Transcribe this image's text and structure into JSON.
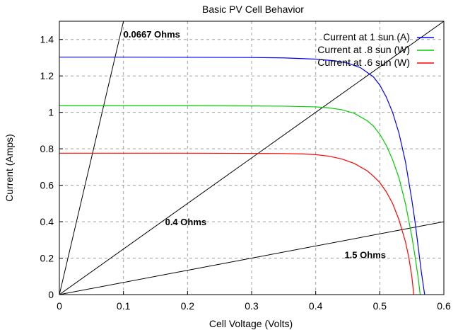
{
  "chart_data": {
    "type": "line",
    "title": "Basic PV Cell Behavior",
    "xlabel": "Cell Voltage (Volts)",
    "ylabel": "Current (Amps)",
    "xlim": [
      0,
      0.6
    ],
    "ylim": [
      0,
      1.5
    ],
    "xticks": [
      0,
      0.1,
      0.2,
      0.3,
      0.4,
      0.5,
      0.6
    ],
    "xtick_labels": [
      "0",
      "0.1",
      "0.2",
      "0.3",
      "0.4",
      "0.5",
      "0.6"
    ],
    "yticks": [
      0,
      0.2,
      0.4,
      0.6,
      0.8,
      1,
      1.2,
      1.4
    ],
    "ytick_labels": [
      "0",
      "0.2",
      "0.4",
      "0.6",
      "0.8",
      "1",
      "1.2",
      "1.4"
    ],
    "grid": true,
    "legend_position": "top-right",
    "series": [
      {
        "name": "Current at 1 sun (A)",
        "color": "#0000ff",
        "x": [
          0,
          0.1,
          0.2,
          0.3,
          0.35,
          0.4,
          0.43,
          0.45,
          0.47,
          0.49,
          0.5,
          0.51,
          0.52,
          0.53,
          0.54,
          0.55,
          0.555,
          0.56,
          0.565,
          0.57
        ],
        "y": [
          1.303,
          1.303,
          1.302,
          1.301,
          1.299,
          1.292,
          1.283,
          1.27,
          1.245,
          1.195,
          1.15,
          1.085,
          1.0,
          0.885,
          0.73,
          0.52,
          0.4,
          0.26,
          0.12,
          0.0
        ]
      },
      {
        "name": "Current at .8 sun (W)",
        "color": "#00cc00",
        "x": [
          0,
          0.1,
          0.2,
          0.3,
          0.35,
          0.4,
          0.42,
          0.44,
          0.46,
          0.48,
          0.49,
          0.5,
          0.51,
          0.52,
          0.53,
          0.54,
          0.55,
          0.555,
          0.56,
          0.563
        ],
        "y": [
          1.036,
          1.036,
          1.036,
          1.035,
          1.034,
          1.03,
          1.025,
          1.015,
          0.995,
          0.955,
          0.925,
          0.88,
          0.82,
          0.74,
          0.64,
          0.5,
          0.32,
          0.21,
          0.09,
          0.0
        ]
      },
      {
        "name": "Current at .6 sun (W)",
        "color": "#ff0000",
        "x": [
          0,
          0.1,
          0.2,
          0.3,
          0.35,
          0.38,
          0.4,
          0.42,
          0.44,
          0.46,
          0.48,
          0.49,
          0.5,
          0.51,
          0.52,
          0.53,
          0.54,
          0.545,
          0.55,
          0.553
        ],
        "y": [
          0.776,
          0.776,
          0.776,
          0.775,
          0.774,
          0.772,
          0.768,
          0.76,
          0.745,
          0.72,
          0.68,
          0.65,
          0.615,
          0.565,
          0.5,
          0.41,
          0.29,
          0.21,
          0.1,
          0.0
        ]
      }
    ],
    "load_lines": [
      {
        "label": "0.0667 Ohms",
        "resistance": 0.0667,
        "color": "#000000",
        "label_x": 0.1,
        "label_y": 1.41
      },
      {
        "label": "0.4 Ohms",
        "resistance": 0.4,
        "color": "#000000",
        "label_x": 0.165,
        "label_y": 0.38
      },
      {
        "label": "1.5 Ohms",
        "resistance": 1.5,
        "color": "#000000",
        "label_x": 0.445,
        "label_y": 0.2
      }
    ]
  }
}
